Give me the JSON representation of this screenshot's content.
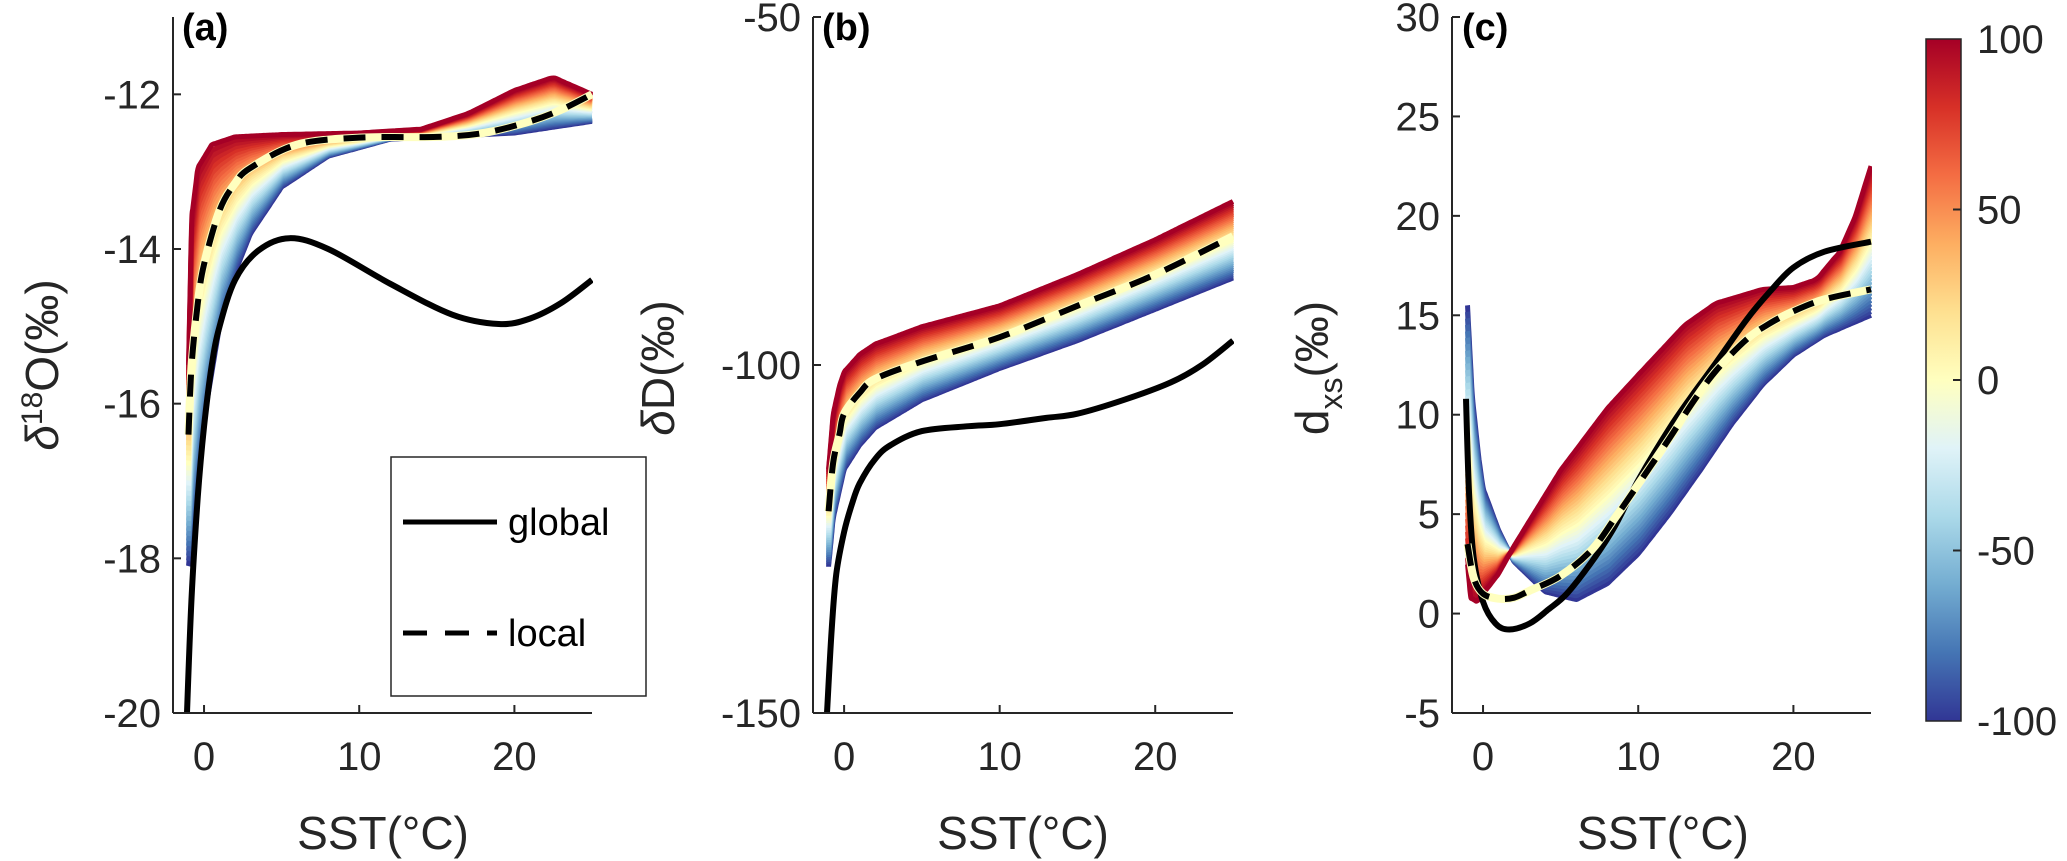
{
  "chart_data": [
    {
      "type": "line",
      "panel_label": "(a)",
      "xlabel": "SST(°C)",
      "ylabel_parts": {
        "prefix": "δ",
        "sup": "18",
        "main": "O(‰)"
      },
      "xlim": [
        -2,
        25
      ],
      "ylim": [
        -20,
        -11
      ],
      "xticks": [
        0,
        10,
        20
      ],
      "yticks": [
        -20,
        -18,
        -16,
        -14,
        -12
      ],
      "ensemble": {
        "colorvar_range": [
          -100,
          100
        ],
        "n_members": 41,
        "upper_member_value": 100,
        "lower_member_value": -100,
        "member_at_100": [
          [
            -1,
            -15.5
          ],
          [
            -0.8,
            -13.6
          ],
          [
            -0.4,
            -12.95
          ],
          [
            0.5,
            -12.65
          ],
          [
            2,
            -12.55
          ],
          [
            5,
            -12.52
          ],
          [
            10,
            -12.5
          ],
          [
            14,
            -12.45
          ],
          [
            17,
            -12.25
          ],
          [
            20,
            -11.95
          ],
          [
            22.5,
            -11.78
          ],
          [
            25,
            -12.0
          ]
        ],
        "member_at_-100": [
          [
            -1,
            -18.1
          ],
          [
            -0.5,
            -17.0
          ],
          [
            0,
            -16.2
          ],
          [
            1,
            -15.0
          ],
          [
            2,
            -14.3
          ],
          [
            3,
            -13.8
          ],
          [
            5,
            -13.2
          ],
          [
            8,
            -12.8
          ],
          [
            12,
            -12.58
          ],
          [
            15,
            -12.55
          ],
          [
            20,
            -12.5
          ],
          [
            25,
            -12.35
          ]
        ]
      },
      "series": [
        {
          "name": "global",
          "style": "solid",
          "color": "#000000",
          "points": [
            [
              -1.1,
              -20
            ],
            [
              -0.8,
              -18.5
            ],
            [
              -0.4,
              -17.2
            ],
            [
              0,
              -16.3
            ],
            [
              0.5,
              -15.5
            ],
            [
              1,
              -15.0
            ],
            [
              2,
              -14.4
            ],
            [
              3.5,
              -14.02
            ],
            [
              5.5,
              -13.86
            ],
            [
              8,
              -14.0
            ],
            [
              12,
              -14.45
            ],
            [
              16,
              -14.85
            ],
            [
              19,
              -14.97
            ],
            [
              21,
              -14.9
            ],
            [
              23,
              -14.7
            ],
            [
              25,
              -14.4
            ]
          ]
        },
        {
          "name": "local",
          "style": "dashed",
          "color": "#000000",
          "points": [
            [
              -1,
              -16.4
            ],
            [
              -0.8,
              -15.5
            ],
            [
              -0.4,
              -14.7
            ],
            [
              0,
              -14.2
            ],
            [
              1,
              -13.5
            ],
            [
              2,
              -13.15
            ],
            [
              3,
              -12.95
            ],
            [
              6,
              -12.65
            ],
            [
              10,
              -12.56
            ],
            [
              15,
              -12.55
            ],
            [
              18,
              -12.5
            ],
            [
              21,
              -12.35
            ],
            [
              23,
              -12.2
            ],
            [
              25,
              -12.0
            ]
          ]
        }
      ],
      "legend": {
        "location": "bottom-right",
        "entries": [
          {
            "label": "global",
            "style": "solid"
          },
          {
            "label": "local",
            "style": "dashed"
          }
        ]
      }
    },
    {
      "type": "line",
      "panel_label": "(b)",
      "xlabel": "SST(°C)",
      "ylabel_parts": {
        "prefix": "δ",
        "sup": "",
        "main": "D(‰)"
      },
      "xlim": [
        -2,
        25
      ],
      "ylim": [
        -150,
        -50
      ],
      "xticks": [
        0,
        10,
        20
      ],
      "yticks": [
        -150,
        -100,
        -50
      ],
      "ensemble": {
        "colorvar_range": [
          -100,
          100
        ],
        "n_members": 41,
        "upper_member_value": 100,
        "lower_member_value": -100,
        "member_at_100": [
          [
            -1,
            -115
          ],
          [
            -0.7,
            -107
          ],
          [
            -0.3,
            -103
          ],
          [
            0,
            -101
          ],
          [
            1,
            -98.5
          ],
          [
            2,
            -97
          ],
          [
            5,
            -94.5
          ],
          [
            10,
            -91.5
          ],
          [
            15,
            -87
          ],
          [
            20,
            -82
          ],
          [
            25,
            -76.5
          ]
        ],
        "member_at_-100": [
          [
            -1,
            -129
          ],
          [
            -0.7,
            -122
          ],
          [
            -0.3,
            -118
          ],
          [
            0,
            -115
          ],
          [
            1,
            -111.5
          ],
          [
            2,
            -109
          ],
          [
            5,
            -105
          ],
          [
            10,
            -100.5
          ],
          [
            15,
            -96.5
          ],
          [
            20,
            -92
          ],
          [
            25,
            -87.5
          ]
        ]
      },
      "series": [
        {
          "name": "global",
          "style": "solid",
          "color": "#000000",
          "points": [
            [
              -1.1,
              -150
            ],
            [
              -0.8,
              -138
            ],
            [
              -0.5,
              -130
            ],
            [
              0,
              -124
            ],
            [
              0.5,
              -120
            ],
            [
              1,
              -117
            ],
            [
              2,
              -113.5
            ],
            [
              3,
              -111.5
            ],
            [
              5,
              -109.5
            ],
            [
              8,
              -108.8
            ],
            [
              10,
              -108.5
            ],
            [
              13,
              -107.6
            ],
            [
              15,
              -107
            ],
            [
              18,
              -105
            ],
            [
              21,
              -102.5
            ],
            [
              23,
              -100
            ],
            [
              25,
              -96.5
            ]
          ]
        },
        {
          "name": "local",
          "style": "dashed",
          "color": "#000000",
          "points": [
            [
              -1,
              -121
            ],
            [
              -0.7,
              -114
            ],
            [
              -0.3,
              -110
            ],
            [
              0,
              -107
            ],
            [
              1,
              -104
            ],
            [
              2,
              -102
            ],
            [
              5,
              -99.5
            ],
            [
              10,
              -96
            ],
            [
              15,
              -91.5
            ],
            [
              20,
              -87
            ],
            [
              25,
              -81.5
            ]
          ]
        }
      ]
    },
    {
      "type": "line",
      "panel_label": "(c)",
      "xlabel": "SST(°C)",
      "ylabel_parts": {
        "prefix": "d",
        "sub": "xs",
        "main": "(‰)"
      },
      "xlim": [
        -2,
        25
      ],
      "ylim": [
        -5,
        30
      ],
      "xticks": [
        0,
        10,
        20
      ],
      "yticks": [
        -5,
        0,
        5,
        10,
        15,
        20,
        25,
        30
      ],
      "ensemble": {
        "colorvar_range": [
          -100,
          100
        ],
        "n_members": 41,
        "upper_member_value": 100,
        "lower_member_value": -100,
        "member_at_100": [
          [
            -1,
            2.5
          ],
          [
            -0.8,
            0.8
          ],
          [
            -0.4,
            0.6
          ],
          [
            0,
            1.0
          ],
          [
            1,
            2.0
          ],
          [
            2,
            3.4
          ],
          [
            5,
            7.2
          ],
          [
            8,
            10.3
          ],
          [
            10,
            12.0
          ],
          [
            13,
            14.5
          ],
          [
            15,
            15.6
          ],
          [
            18,
            16.3
          ],
          [
            20,
            16.4
          ],
          [
            21.5,
            16.8
          ],
          [
            23,
            18.2
          ],
          [
            24,
            20
          ],
          [
            25,
            22.5
          ]
        ],
        "member_at_-100": [
          [
            -1,
            15.5
          ],
          [
            -0.7,
            11
          ],
          [
            -0.3,
            8
          ],
          [
            0,
            6.3
          ],
          [
            1,
            4.2
          ],
          [
            2,
            2.6
          ],
          [
            4,
            1.1
          ],
          [
            6,
            0.7
          ],
          [
            8,
            1.5
          ],
          [
            10,
            3.0
          ],
          [
            12,
            5.0
          ],
          [
            14,
            7.2
          ],
          [
            16,
            9.5
          ],
          [
            18,
            11.5
          ],
          [
            20,
            13.0
          ],
          [
            22,
            14.0
          ],
          [
            25,
            15.0
          ]
        ]
      },
      "series": [
        {
          "name": "global",
          "style": "solid",
          "color": "#000000",
          "points": [
            [
              -1.1,
              10.8
            ],
            [
              -0.9,
              6
            ],
            [
              -0.6,
              2.8
            ],
            [
              0,
              0.6
            ],
            [
              0.8,
              -0.5
            ],
            [
              1.7,
              -0.8
            ],
            [
              3,
              -0.5
            ],
            [
              4.2,
              0.2
            ],
            [
              5.4,
              1.0
            ],
            [
              7,
              2.6
            ],
            [
              8.5,
              4.4
            ],
            [
              10,
              6.7
            ],
            [
              12,
              9.3
            ],
            [
              13.5,
              11.0
            ],
            [
              15,
              12.6
            ],
            [
              17,
              14.8
            ],
            [
              18.5,
              16.2
            ],
            [
              20,
              17.4
            ],
            [
              22,
              18.2
            ],
            [
              25,
              18.7
            ]
          ]
        },
        {
          "name": "local",
          "style": "dashed",
          "color": "#000000",
          "points": [
            [
              -1,
              3.5
            ],
            [
              -0.6,
              1.8
            ],
            [
              0,
              1.0
            ],
            [
              1,
              0.75
            ],
            [
              2,
              0.8
            ],
            [
              3,
              1.15
            ],
            [
              5,
              1.9
            ],
            [
              7,
              3.2
            ],
            [
              8.5,
              4.8
            ],
            [
              10,
              6.5
            ],
            [
              12,
              8.8
            ],
            [
              13.5,
              10.6
            ],
            [
              15,
              12.2
            ],
            [
              17,
              13.8
            ],
            [
              18.5,
              14.6
            ],
            [
              20,
              15.2
            ],
            [
              22,
              15.8
            ],
            [
              25,
              16.3
            ]
          ]
        }
      ]
    }
  ],
  "colorbar": {
    "range": [
      -100,
      100
    ],
    "ticks": [
      -100,
      -50,
      0,
      50,
      100
    ],
    "colormap_stops": [
      "#313695",
      "#4575b4",
      "#74add1",
      "#abd9e9",
      "#e0f3f8",
      "#ffffbf",
      "#fee090",
      "#fdae61",
      "#f46d43",
      "#d73027",
      "#a50026"
    ]
  }
}
